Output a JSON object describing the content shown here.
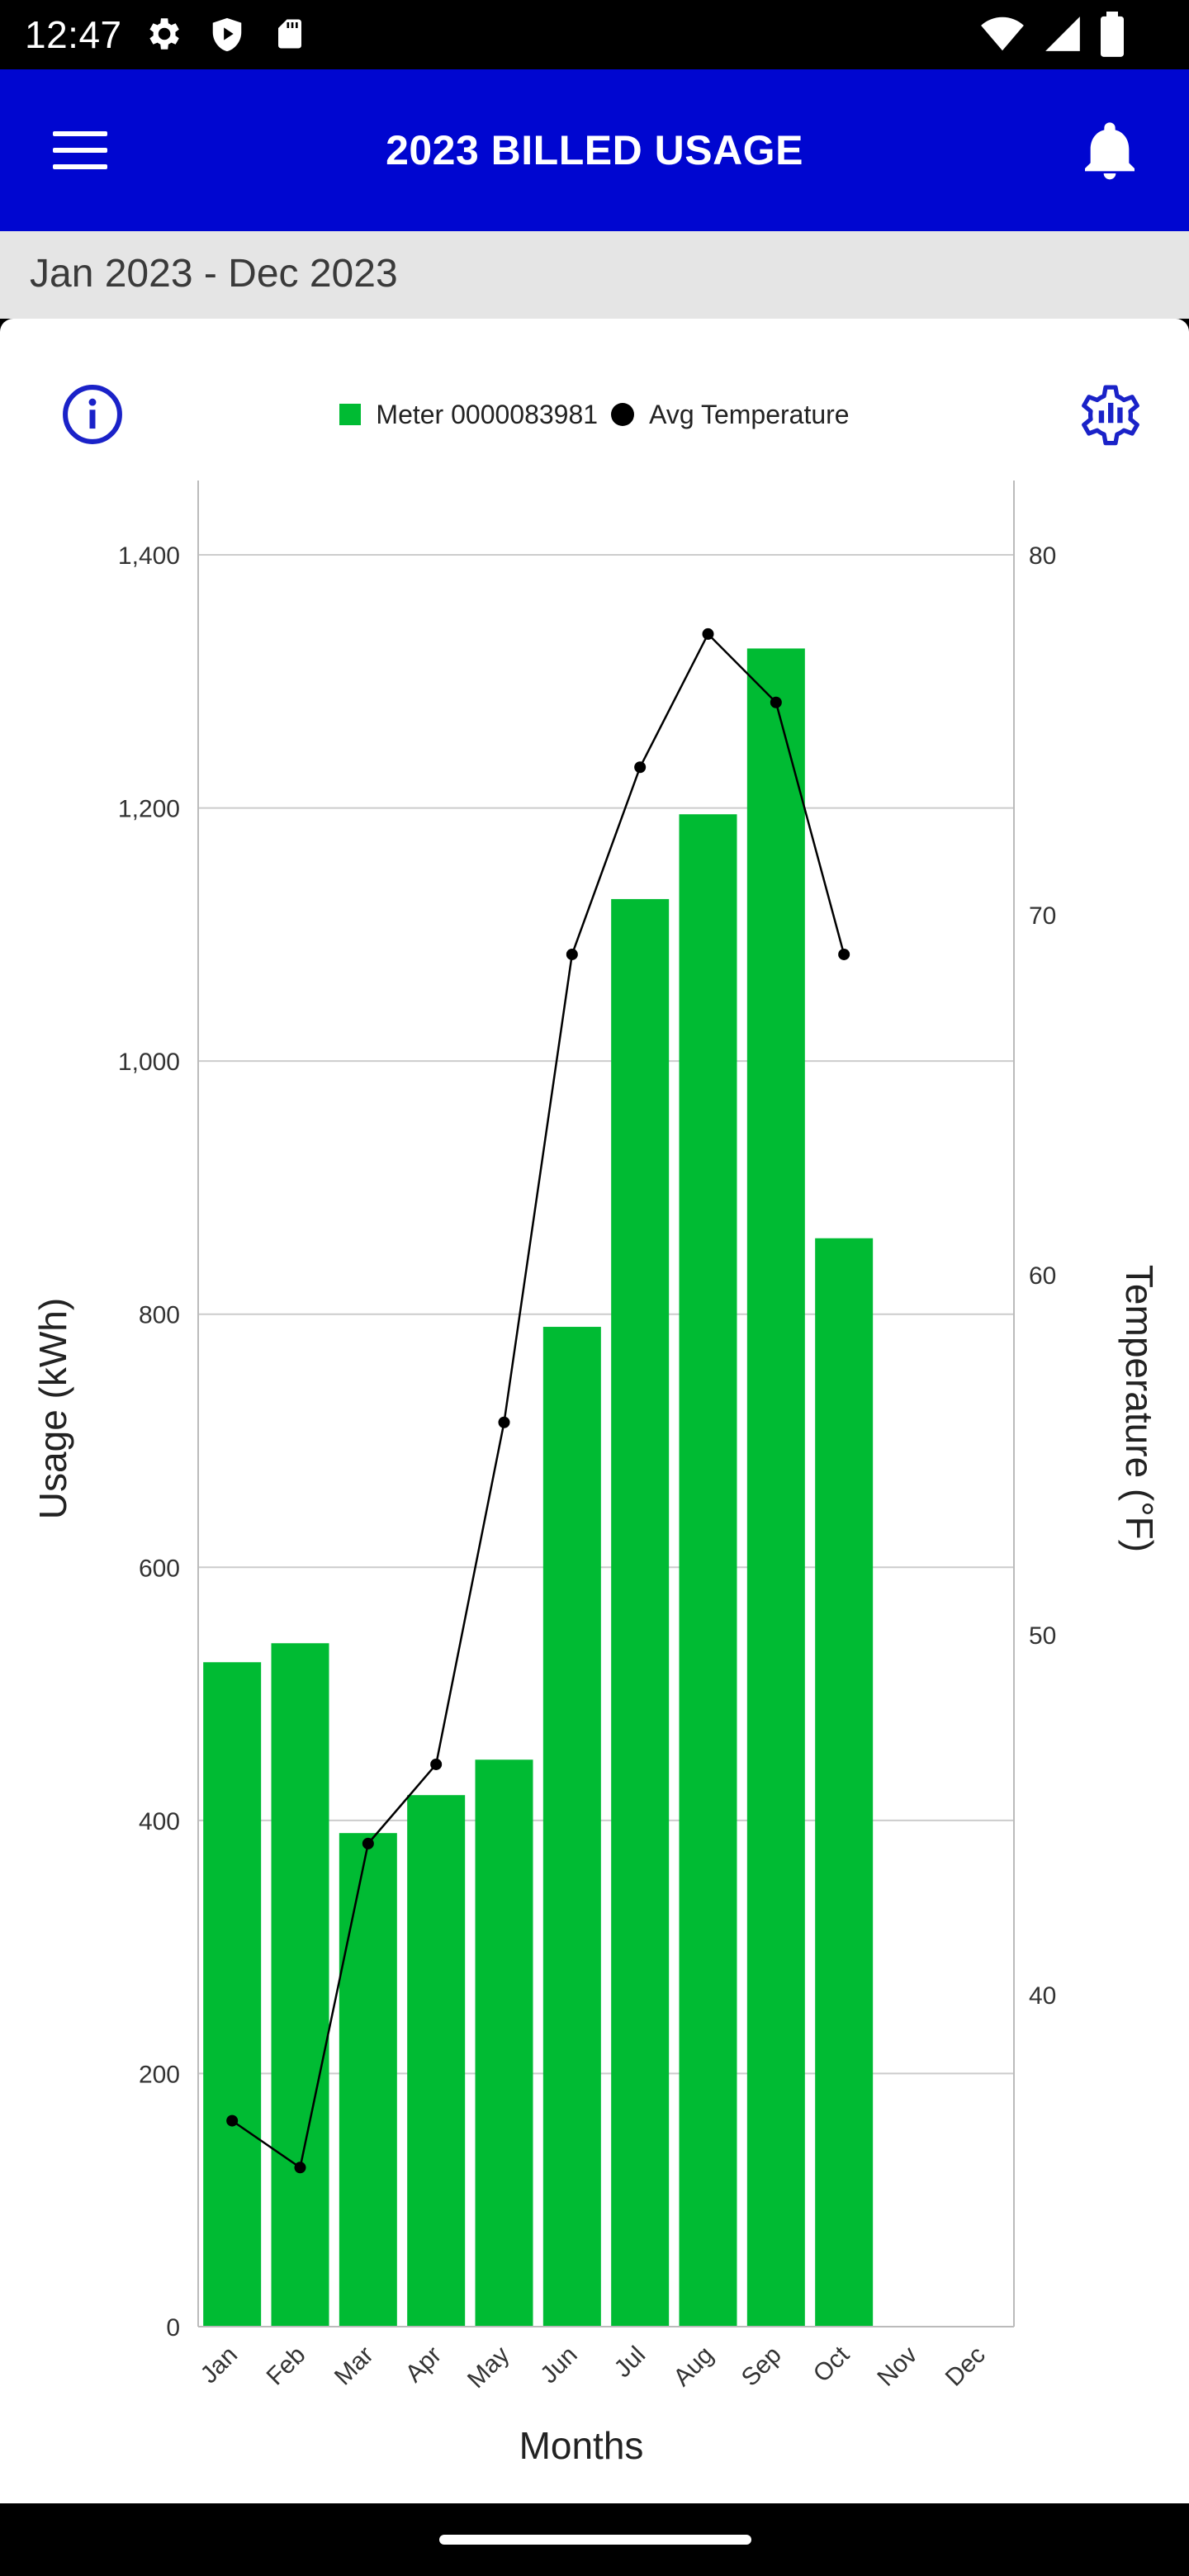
{
  "status_bar": {
    "time": "12:47",
    "left_icons": [
      "gear-icon",
      "shield-play-icon",
      "sd-card-icon"
    ],
    "right_icons": [
      "wifi-icon",
      "signal-icon",
      "battery-icon"
    ]
  },
  "app_bar": {
    "title": "2023 BILLED USAGE",
    "menu_icon": "hamburger-menu-icon",
    "bell_icon": "bell-icon"
  },
  "range_strip": {
    "label": "Jan 2023 - Dec 2023"
  },
  "card": {
    "info_icon": "info-circle-icon",
    "settings_icon": "chart-settings-gear-icon"
  },
  "colors": {
    "app_bar": "#0006d0",
    "bar": "#00bb33",
    "line": "#000000",
    "accent_icon": "#1a22c8"
  },
  "chart_data": {
    "type": "bar",
    "categories": [
      "Jan",
      "Feb",
      "Mar",
      "Apr",
      "May",
      "Jun",
      "Jul",
      "Aug",
      "Sep",
      "Oct",
      "Nov",
      "Dec"
    ],
    "series": [
      {
        "name": "Meter 0000083981",
        "type": "bar",
        "axis": "left",
        "values": [
          525,
          540,
          390,
          420,
          448,
          790,
          1128,
          1195,
          1326,
          860,
          null,
          null
        ]
      },
      {
        "name": "Avg Temperature",
        "type": "line",
        "axis": "right",
        "values": [
          36.5,
          35.2,
          44.2,
          46.4,
          55.9,
          68.9,
          74.1,
          77.8,
          75.9,
          68.9,
          null,
          null
        ]
      }
    ],
    "xlabel": "Months",
    "ylabel": "Usage (kWh)",
    "y2label": "Temperature (°F)",
    "ylim": [
      0,
      1400
    ],
    "y2lim": [
      30,
      80
    ],
    "yticks": [
      0,
      200,
      400,
      600,
      800,
      1000,
      1200,
      1400
    ],
    "ytick_labels": [
      "0",
      "200",
      "400",
      "600",
      "800",
      "1,000",
      "1,200",
      "1,400"
    ],
    "y2ticks": [
      40,
      50,
      60,
      70,
      80
    ],
    "y2tick_labels": [
      "40",
      "50",
      "60",
      "70",
      "80"
    ],
    "grid": true,
    "legend_position": "top-center"
  }
}
